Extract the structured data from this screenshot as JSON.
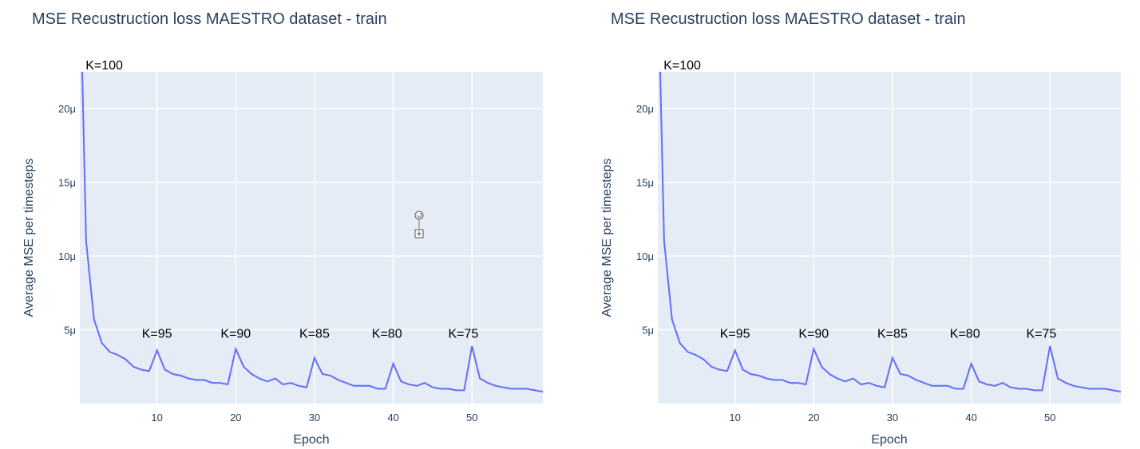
{
  "colors": {
    "plot_bg": "#e5ecf6",
    "grid": "#ffffff",
    "line": "#636efa",
    "text": "#2a3f5f"
  },
  "chart_data": [
    {
      "type": "line",
      "title": "MSE Recustruction loss MAESTRO dataset - train",
      "xlabel": "Epoch",
      "ylabel": "Average MSE per timesteps",
      "xlim": [
        0.2,
        59
      ],
      "ylim": [
        0,
        2.25e-05
      ],
      "xticks": [
        10,
        20,
        30,
        40,
        50
      ],
      "xtick_labels": [
        "10",
        "20",
        "30",
        "40",
        "50"
      ],
      "yticks": [
        5e-06,
        1e-05,
        1.5e-05,
        2e-05
      ],
      "ytick_labels": [
        "5μ",
        "10μ",
        "15μ",
        "20μ"
      ],
      "grid": true,
      "series": [
        {
          "x": [
            0.5,
            1,
            2,
            3,
            4,
            5,
            6,
            7,
            8,
            9,
            10,
            11,
            12,
            13,
            14,
            15,
            16,
            17,
            18,
            19,
            20,
            21,
            22,
            23,
            24,
            25,
            26,
            27,
            28,
            29,
            30,
            31,
            32,
            33,
            34,
            35,
            36,
            37,
            38,
            39,
            40,
            41,
            42,
            43,
            44,
            45,
            46,
            47,
            48,
            49,
            50,
            51,
            52,
            53,
            54,
            55,
            56,
            57,
            58,
            59
          ],
          "values": [
            2.25e-05,
            1.1e-05,
            5.7e-06,
            4.1e-06,
            3.5e-06,
            3.3e-06,
            3e-06,
            2.5e-06,
            2.3e-06,
            2.2e-06,
            3.6e-06,
            2.3e-06,
            2e-06,
            1.9e-06,
            1.7e-06,
            1.6e-06,
            1.6e-06,
            1.4e-06,
            1.4e-06,
            1.3e-06,
            3.7e-06,
            2.5e-06,
            2e-06,
            1.7e-06,
            1.5e-06,
            1.7e-06,
            1.3e-06,
            1.4e-06,
            1.2e-06,
            1.1e-06,
            3.1e-06,
            2e-06,
            1.9e-06,
            1.6e-06,
            1.4e-06,
            1.2e-06,
            1.2e-06,
            1.2e-06,
            1e-06,
            1e-06,
            2.7e-06,
            1.5e-06,
            1.3e-06,
            1.2e-06,
            1.4e-06,
            1.1e-06,
            1e-06,
            1e-06,
            9e-07,
            9e-07,
            3.9e-06,
            1.7e-06,
            1.4e-06,
            1.2e-06,
            1.1e-06,
            1e-06,
            1e-06,
            1e-06,
            9e-07,
            8e-07
          ]
        }
      ],
      "annotations": [
        {
          "text": "K=100",
          "x": 3.3,
          "y": 2.3e-05
        },
        {
          "text": "K=95",
          "x": 10,
          "y": 4.8e-06
        },
        {
          "text": "K=90",
          "x": 20,
          "y": 4.8e-06
        },
        {
          "text": "K=85",
          "x": 30,
          "y": 4.8e-06
        },
        {
          "text": "K=80",
          "x": 39.2,
          "y": 4.8e-06
        },
        {
          "text": "K=75",
          "x": 48.9,
          "y": 4.8e-06
        }
      ]
    },
    {
      "type": "line",
      "title": "MSE Recustruction loss MAESTRO dataset - train",
      "xlabel": "Epoch",
      "ylabel": "Average MSE per timesteps",
      "xlim": [
        0.2,
        59
      ],
      "ylim": [
        0,
        2.25e-05
      ],
      "xticks": [
        10,
        20,
        30,
        40,
        50
      ],
      "xtick_labels": [
        "10",
        "20",
        "30",
        "40",
        "50"
      ],
      "yticks": [
        5e-06,
        1e-05,
        1.5e-05,
        2e-05
      ],
      "ytick_labels": [
        "5μ",
        "10μ",
        "15μ",
        "20μ"
      ],
      "grid": true,
      "series": [
        {
          "x": [
            0.5,
            1,
            2,
            3,
            4,
            5,
            6,
            7,
            8,
            9,
            10,
            11,
            12,
            13,
            14,
            15,
            16,
            17,
            18,
            19,
            20,
            21,
            22,
            23,
            24,
            25,
            26,
            27,
            28,
            29,
            30,
            31,
            32,
            33,
            34,
            35,
            36,
            37,
            38,
            39,
            40,
            41,
            42,
            43,
            44,
            45,
            46,
            47,
            48,
            49,
            50,
            51,
            52,
            53,
            54,
            55,
            56,
            57,
            58,
            59
          ],
          "values": [
            2.25e-05,
            1.1e-05,
            5.7e-06,
            4.1e-06,
            3.5e-06,
            3.3e-06,
            3e-06,
            2.5e-06,
            2.3e-06,
            2.2e-06,
            3.6e-06,
            2.3e-06,
            2e-06,
            1.9e-06,
            1.7e-06,
            1.6e-06,
            1.6e-06,
            1.4e-06,
            1.4e-06,
            1.3e-06,
            3.7e-06,
            2.5e-06,
            2e-06,
            1.7e-06,
            1.5e-06,
            1.7e-06,
            1.3e-06,
            1.4e-06,
            1.2e-06,
            1.1e-06,
            3.1e-06,
            2e-06,
            1.9e-06,
            1.6e-06,
            1.4e-06,
            1.2e-06,
            1.2e-06,
            1.2e-06,
            1e-06,
            1e-06,
            2.7e-06,
            1.5e-06,
            1.3e-06,
            1.2e-06,
            1.4e-06,
            1.1e-06,
            1e-06,
            1e-06,
            9e-07,
            9e-07,
            3.9e-06,
            1.7e-06,
            1.4e-06,
            1.2e-06,
            1.1e-06,
            1e-06,
            1e-06,
            1e-06,
            9e-07,
            8e-07
          ]
        }
      ],
      "annotations": [
        {
          "text": "K=100",
          "x": 3.3,
          "y": 2.3e-05
        },
        {
          "text": "K=95",
          "x": 10,
          "y": 4.8e-06
        },
        {
          "text": "K=90",
          "x": 20,
          "y": 4.8e-06
        },
        {
          "text": "K=85",
          "x": 30,
          "y": 4.8e-06
        },
        {
          "text": "K=80",
          "x": 39.2,
          "y": 4.8e-06
        },
        {
          "text": "K=75",
          "x": 48.9,
          "y": 4.8e-06
        }
      ]
    }
  ]
}
